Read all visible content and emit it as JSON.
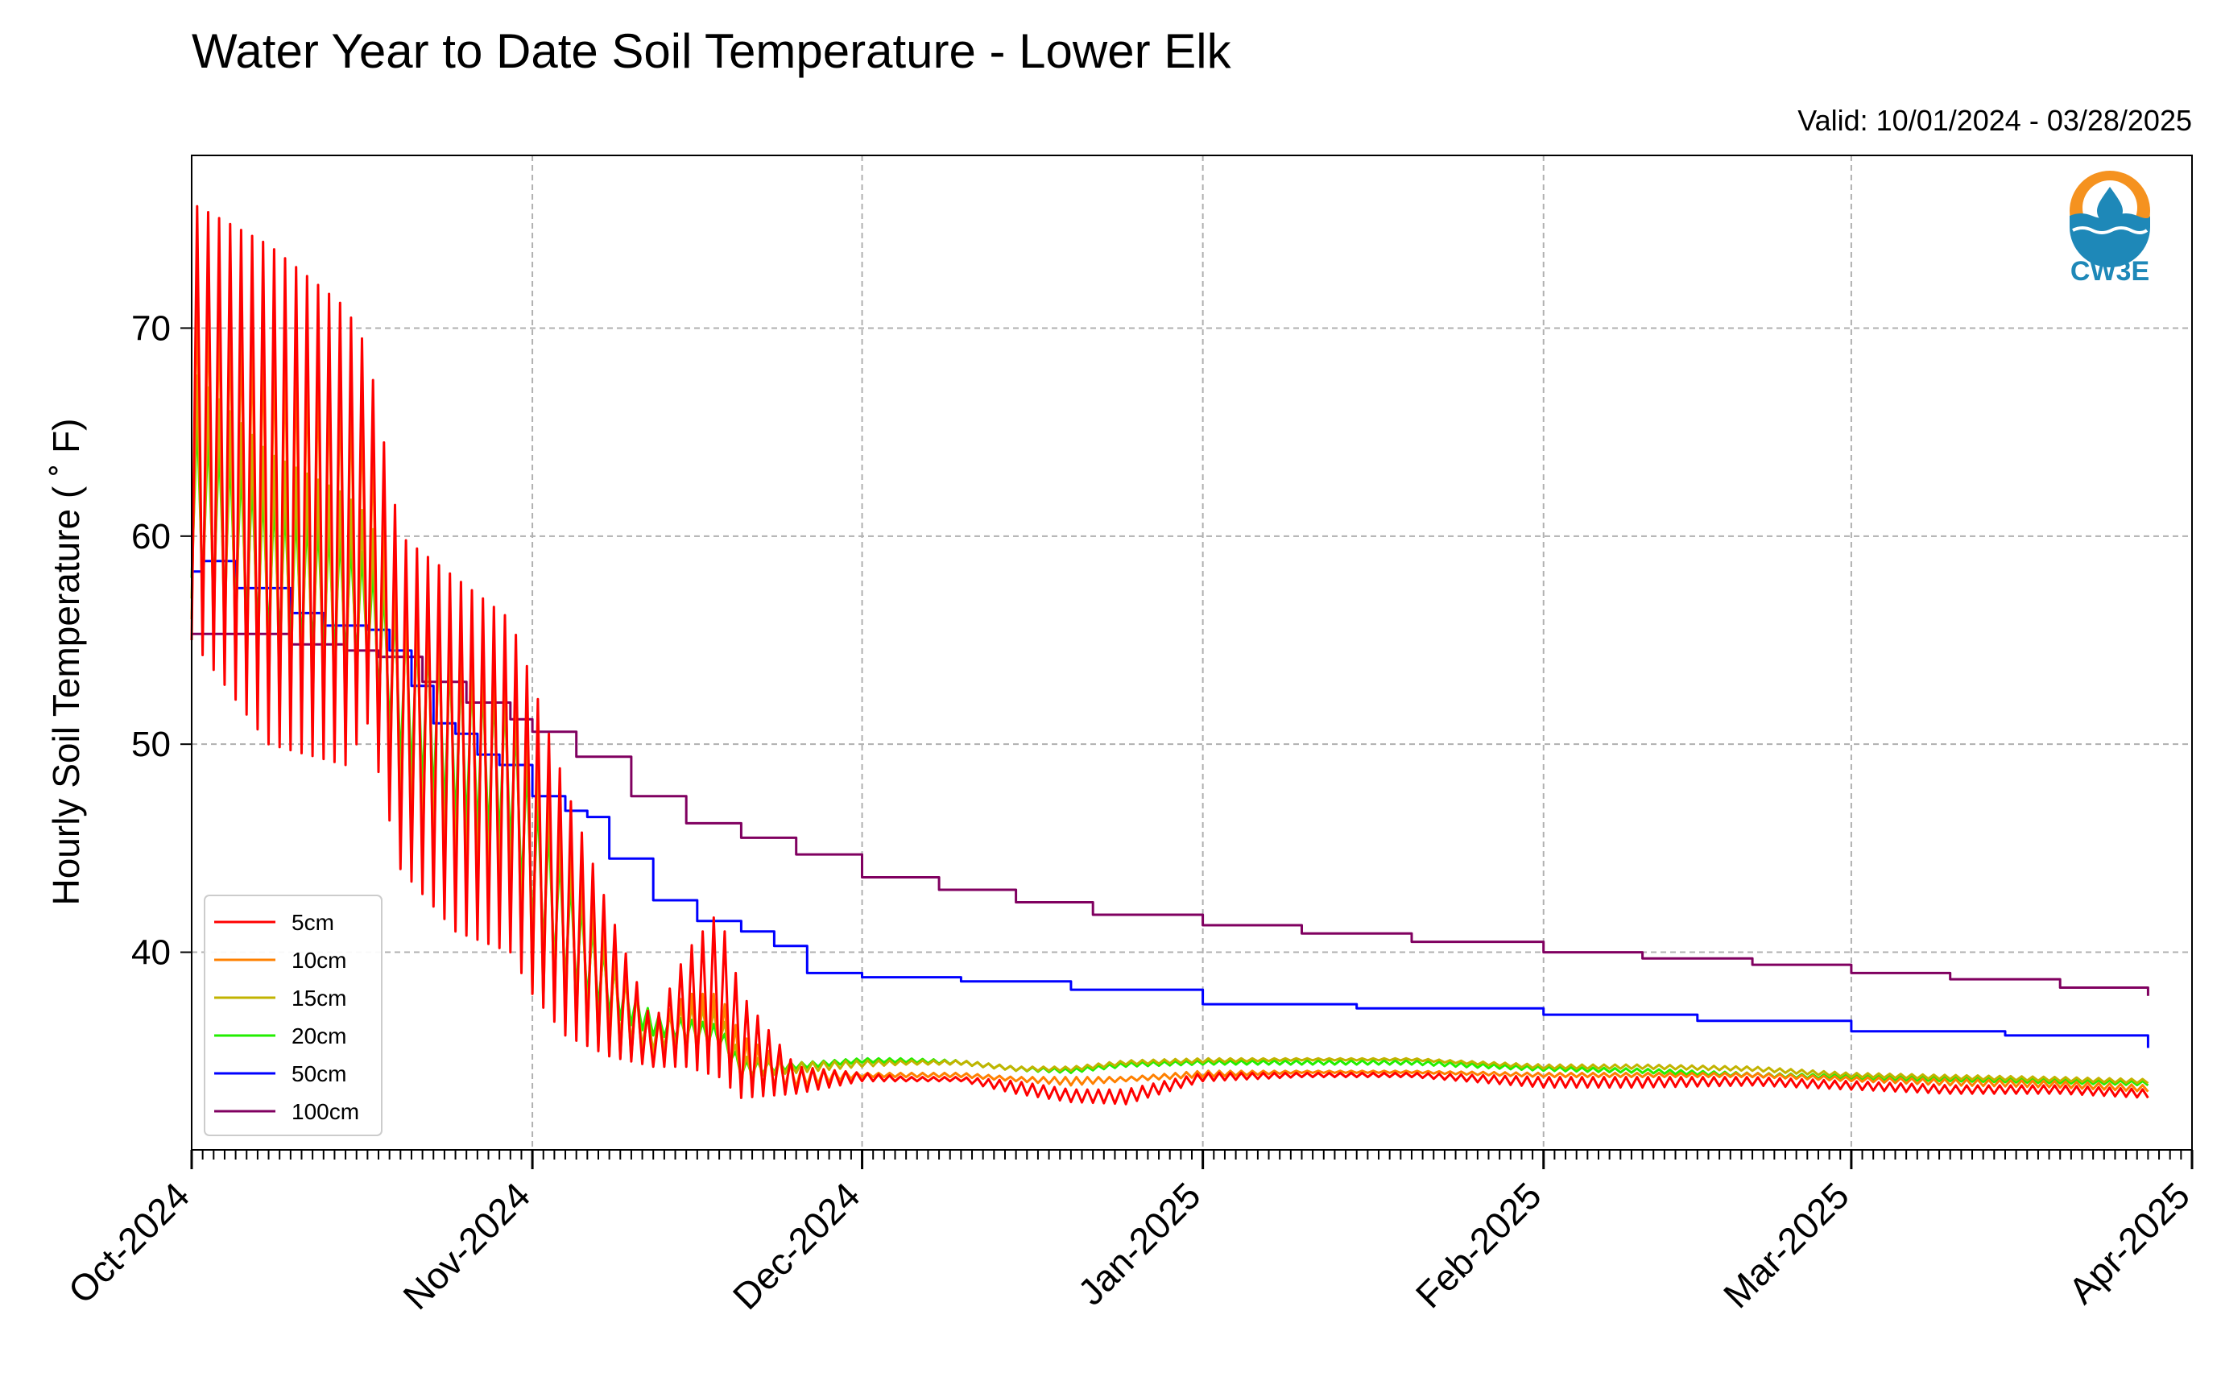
{
  "chart_data": {
    "type": "line",
    "title": "Water Year to Date Soil Temperature - Lower Elk",
    "subtitle": "Valid: 10/01/2024 - 03/28/2025",
    "xlabel": "",
    "ylabel": "Hourly Soil Temperature ( ˚ F)",
    "xlim": [
      "2024-10-01",
      "2025-04-01"
    ],
    "ylim": [
      30.5,
      78.3
    ],
    "x_ticks": [
      "2024-10-01",
      "2024-11-01",
      "2024-12-01",
      "2025-01-01",
      "2025-02-01",
      "2025-03-01",
      "2025-04-01"
    ],
    "x_tick_labels": [
      "Oct-2024",
      "Nov-2024",
      "Dec-2024",
      "Jan-2025",
      "Feb-2025",
      "Mar-2025",
      "Apr-2025"
    ],
    "y_ticks": [
      40,
      50,
      60,
      70
    ],
    "y_tick_labels": [
      "40",
      "50",
      "60",
      "70"
    ],
    "grid": true,
    "legend_position": "lower-left",
    "logo_text": "CW3E",
    "series": [
      {
        "name": "5cm",
        "color": "#ff0000",
        "x": [
          "2024-10-01",
          "2024-10-08",
          "2024-10-15",
          "2024-10-17",
          "2024-10-20",
          "2024-10-25",
          "2024-10-30",
          "2024-11-01",
          "2024-11-04",
          "2024-11-08",
          "2024-11-12",
          "2024-11-15",
          "2024-11-18",
          "2024-11-20",
          "2024-11-25",
          "2024-12-01",
          "2024-12-05",
          "2024-12-10",
          "2024-12-15",
          "2024-12-20",
          "2024-12-25",
          "2025-01-01",
          "2025-01-10",
          "2025-01-20",
          "2025-02-01",
          "2025-02-10",
          "2025-02-20",
          "2025-03-01",
          "2025-03-10",
          "2025-03-20",
          "2025-03-28"
        ],
        "min": [
          55,
          50,
          49,
          51,
          44,
          41,
          40,
          38,
          36,
          35,
          34.5,
          34.5,
          34,
          33,
          33.2,
          33.8,
          33.8,
          33.8,
          33.2,
          32.8,
          32.7,
          33.8,
          34,
          34,
          33.5,
          33.5,
          33.6,
          33.4,
          33.2,
          33.2,
          33
        ],
        "max": [
          76,
          74,
          71,
          69,
          60,
          58,
          56,
          53,
          48,
          42,
          36.5,
          40,
          42,
          38,
          34.5,
          34.2,
          34,
          34,
          33.8,
          33.4,
          33.4,
          34.2,
          34.2,
          34.2,
          34,
          34,
          34,
          33.8,
          33.6,
          33.6,
          33.4
        ]
      },
      {
        "name": "10cm",
        "color": "#ff8000",
        "x": [
          "2024-10-01",
          "2024-10-08",
          "2024-10-15",
          "2024-10-17",
          "2024-10-20",
          "2024-10-25",
          "2024-10-30",
          "2024-11-01",
          "2024-11-04",
          "2024-11-08",
          "2024-11-12",
          "2024-11-15",
          "2024-11-18",
          "2024-11-20",
          "2024-11-25",
          "2024-12-01",
          "2024-12-05",
          "2024-12-10",
          "2024-12-15",
          "2024-12-20",
          "2024-12-25",
          "2025-01-01",
          "2025-01-10",
          "2025-01-20",
          "2025-02-01",
          "2025-02-10",
          "2025-02-20",
          "2025-03-01",
          "2025-03-10",
          "2025-03-20",
          "2025-03-28"
        ],
        "min": [
          56,
          51,
          50,
          52,
          45,
          42,
          41,
          38,
          36.5,
          35,
          34.8,
          35,
          35,
          33.5,
          33.5,
          34,
          34,
          34,
          33.8,
          33.6,
          33.8,
          34,
          34.2,
          34.2,
          34,
          34,
          34,
          33.8,
          33.6,
          33.5,
          33.3
        ],
        "max": [
          72,
          70,
          68,
          66,
          58,
          57,
          55,
          52,
          47,
          41,
          36.5,
          38,
          38,
          36,
          34.5,
          34.2,
          34.2,
          34.2,
          34,
          34,
          34,
          34.3,
          34.3,
          34.3,
          34.2,
          34.2,
          34.2,
          34,
          33.9,
          33.8,
          33.6
        ]
      },
      {
        "name": "15cm",
        "color": "#c2b300",
        "x": [
          "2024-10-01",
          "2024-10-08",
          "2024-10-15",
          "2024-10-17",
          "2024-10-20",
          "2024-10-25",
          "2024-10-30",
          "2024-11-01",
          "2024-11-04",
          "2024-11-08",
          "2024-11-12",
          "2024-11-15",
          "2024-11-18",
          "2024-11-20",
          "2024-11-25",
          "2024-12-01",
          "2024-12-05",
          "2024-12-10",
          "2024-12-15",
          "2024-12-20",
          "2024-12-25",
          "2025-01-01",
          "2025-01-10",
          "2025-01-20",
          "2025-02-01",
          "2025-02-10",
          "2025-02-20",
          "2025-03-01",
          "2025-03-10",
          "2025-03-20",
          "2025-03-28"
        ],
        "min": [
          57,
          53,
          52,
          53,
          47,
          44,
          43,
          40,
          38,
          36,
          35.2,
          35.6,
          35.5,
          34,
          34.2,
          34.5,
          34.6,
          34.6,
          34.3,
          34.3,
          34.6,
          34.7,
          34.8,
          34.8,
          34.4,
          34.4,
          34.3,
          34,
          33.9,
          33.8,
          33.7
        ],
        "max": [
          68,
          64,
          62,
          61,
          57,
          55,
          53,
          50,
          45,
          40,
          36.8,
          37.5,
          37.2,
          35,
          34.7,
          34.8,
          34.8,
          34.8,
          34.5,
          34.5,
          34.8,
          34.9,
          34.9,
          34.9,
          34.6,
          34.6,
          34.5,
          34.2,
          34.1,
          34,
          33.9
        ]
      },
      {
        "name": "20cm",
        "color": "#22ee00",
        "x": [
          "2024-10-01",
          "2024-10-08",
          "2024-10-15",
          "2024-10-17",
          "2024-10-20",
          "2024-10-25",
          "2024-10-30",
          "2024-11-01",
          "2024-11-04",
          "2024-11-08",
          "2024-11-12",
          "2024-11-15",
          "2024-11-18",
          "2024-11-20",
          "2024-11-25",
          "2024-12-01",
          "2024-12-05",
          "2024-12-10",
          "2024-12-15",
          "2024-12-20",
          "2024-12-25",
          "2025-01-01",
          "2025-01-10",
          "2025-01-20",
          "2025-02-01",
          "2025-02-10",
          "2025-02-20",
          "2025-03-01",
          "2025-03-10",
          "2025-03-20",
          "2025-03-28"
        ],
        "min": [
          58,
          55,
          54,
          54,
          49,
          46,
          45,
          41,
          38.5,
          37,
          36,
          35.8,
          35.5,
          34,
          34.4,
          34.7,
          34.7,
          34.6,
          34.3,
          34.2,
          34.5,
          34.6,
          34.6,
          34.6,
          34.3,
          34.2,
          34,
          33.9,
          33.8,
          33.7,
          33.6
        ],
        "max": [
          66,
          62,
          60,
          59,
          56,
          54,
          52,
          48,
          44,
          39.5,
          37,
          36.8,
          36.5,
          34.8,
          34.7,
          34.9,
          34.9,
          34.8,
          34.5,
          34.4,
          34.7,
          34.8,
          34.8,
          34.8,
          34.5,
          34.4,
          34.2,
          34.1,
          34,
          33.9,
          33.8
        ]
      },
      {
        "name": "50cm",
        "color": "#0000ff",
        "x": [
          "2024-10-01",
          "2024-10-02",
          "2024-10-05",
          "2024-10-10",
          "2024-10-13",
          "2024-10-17",
          "2024-10-19",
          "2024-10-21",
          "2024-10-23",
          "2024-10-25",
          "2024-10-27",
          "2024-10-29",
          "2024-11-01",
          "2024-11-04",
          "2024-11-06",
          "2024-11-08",
          "2024-11-12",
          "2024-11-16",
          "2024-11-20",
          "2024-11-23",
          "2024-11-26",
          "2024-12-01",
          "2024-12-10",
          "2024-12-20",
          "2025-01-01",
          "2025-01-15",
          "2025-02-01",
          "2025-02-15",
          "2025-03-01",
          "2025-03-15",
          "2025-03-28"
        ],
        "y": [
          58.3,
          58.8,
          57.5,
          56.3,
          55.7,
          55.5,
          54.5,
          52.8,
          51,
          50.5,
          49.5,
          49,
          47.5,
          46.8,
          46.5,
          44.5,
          42.5,
          41.5,
          41,
          40.3,
          39,
          38.8,
          38.6,
          38.2,
          37.5,
          37.3,
          37,
          36.7,
          36.2,
          36,
          35.4
        ]
      },
      {
        "name": "100cm",
        "color": "#800060",
        "x": [
          "2024-10-01",
          "2024-10-05",
          "2024-10-10",
          "2024-10-15",
          "2024-10-18",
          "2024-10-22",
          "2024-10-26",
          "2024-10-30",
          "2024-11-01",
          "2024-11-05",
          "2024-11-10",
          "2024-11-15",
          "2024-11-20",
          "2024-11-25",
          "2024-12-01",
          "2024-12-08",
          "2024-12-15",
          "2024-12-22",
          "2025-01-01",
          "2025-01-10",
          "2025-01-20",
          "2025-02-01",
          "2025-02-10",
          "2025-02-20",
          "2025-03-01",
          "2025-03-10",
          "2025-03-20",
          "2025-03-28"
        ],
        "y": [
          55.3,
          55.3,
          54.8,
          54.5,
          54.2,
          53,
          52,
          51.2,
          50.6,
          49.4,
          47.5,
          46.2,
          45.5,
          44.7,
          43.6,
          43,
          42.4,
          41.8,
          41.3,
          40.9,
          40.5,
          40,
          39.7,
          39.4,
          39,
          38.7,
          38.3,
          37.9
        ]
      }
    ]
  }
}
